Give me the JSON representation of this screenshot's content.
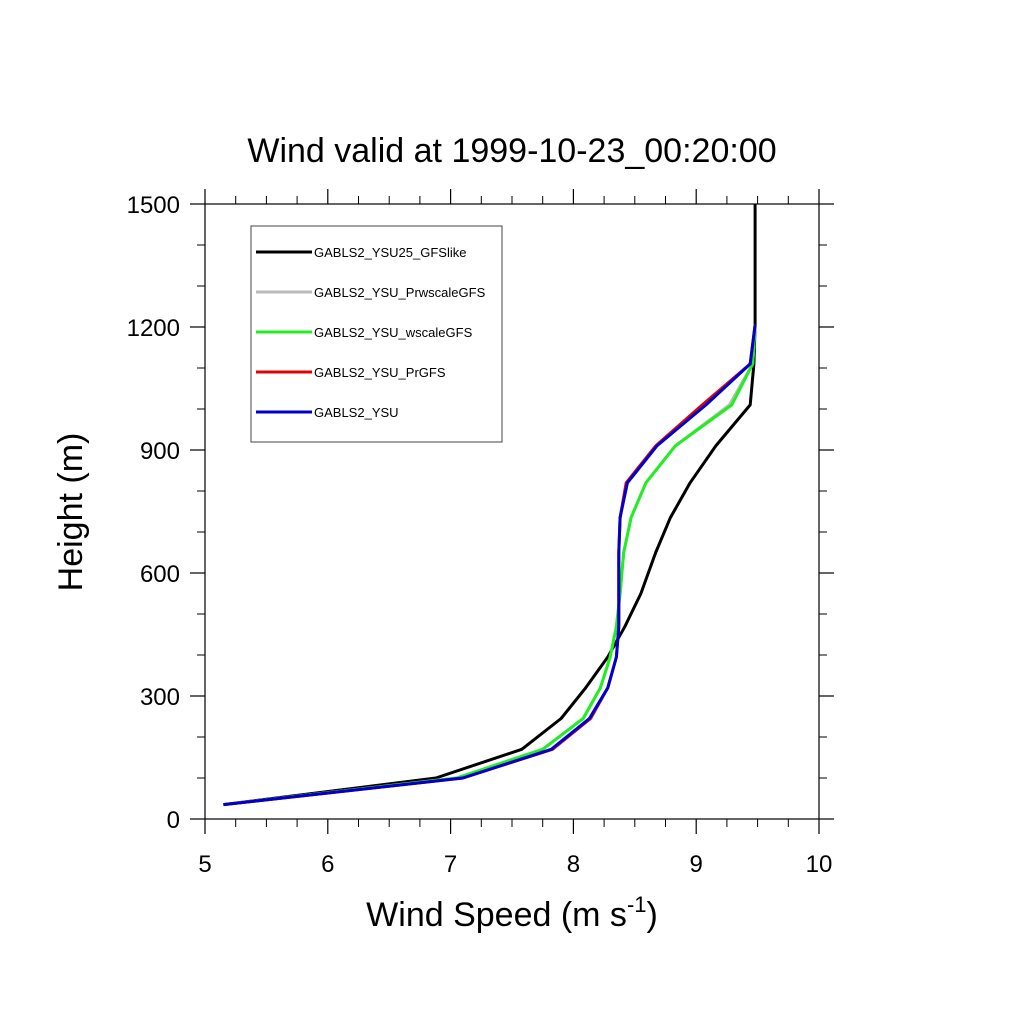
{
  "chart_data": {
    "type": "line",
    "title": "Wind valid at 1999-10-23_00:20:00",
    "xlabel": "Wind Speed (m s",
    "xlabel_sup": "-1",
    "xlabel_end": ")",
    "ylabel": "Height (m)",
    "xlim": [
      5,
      10
    ],
    "ylim": [
      0,
      1500
    ],
    "x_ticks": [
      5,
      6,
      7,
      8,
      9,
      10
    ],
    "y_ticks": [
      0,
      300,
      600,
      900,
      1200,
      1500
    ],
    "x_minor_step": 0.25,
    "y_minor_step": 100,
    "grid": false,
    "legend_position": "top-left",
    "series": [
      {
        "name": "GABLS2_YSU",
        "color": "#0000cc",
        "points": [
          [
            5.15,
            35
          ],
          [
            7.1,
            100
          ],
          [
            7.82,
            170
          ],
          [
            8.13,
            245
          ],
          [
            8.28,
            320
          ],
          [
            8.35,
            395
          ],
          [
            8.37,
            470
          ],
          [
            8.37,
            550
          ],
          [
            8.37,
            650
          ],
          [
            8.38,
            735
          ],
          [
            8.44,
            820
          ],
          [
            8.68,
            910
          ],
          [
            9.08,
            1010
          ],
          [
            9.44,
            1110
          ],
          [
            9.48,
            1205
          ]
        ]
      },
      {
        "name": "GABLS2_YSU_PrGFS",
        "color": "#e00000",
        "points": [
          [
            5.15,
            35
          ],
          [
            7.1,
            100
          ],
          [
            7.83,
            170
          ],
          [
            8.14,
            245
          ],
          [
            8.28,
            320
          ],
          [
            8.35,
            395
          ],
          [
            8.37,
            470
          ],
          [
            8.37,
            550
          ],
          [
            8.37,
            650
          ],
          [
            8.38,
            735
          ],
          [
            8.43,
            820
          ],
          [
            8.67,
            910
          ],
          [
            9.05,
            1010
          ],
          [
            9.44,
            1110
          ],
          [
            9.48,
            1205
          ]
        ]
      },
      {
        "name": "GABLS2_YSU_wscaleGFS",
        "color": "#22ee22",
        "points": [
          [
            5.15,
            35
          ],
          [
            7.05,
            100
          ],
          [
            7.75,
            170
          ],
          [
            8.08,
            245
          ],
          [
            8.22,
            320
          ],
          [
            8.3,
            395
          ],
          [
            8.35,
            470
          ],
          [
            8.38,
            550
          ],
          [
            8.41,
            650
          ],
          [
            8.47,
            735
          ],
          [
            8.59,
            820
          ],
          [
            8.83,
            910
          ],
          [
            9.29,
            1010
          ],
          [
            9.46,
            1110
          ],
          [
            9.48,
            1205
          ]
        ]
      },
      {
        "name": "GABLS2_YSU_PrwscaleGFS",
        "color": "#bbbbbb",
        "points": [
          [
            5.15,
            35
          ],
          [
            7.05,
            100
          ],
          [
            7.75,
            170
          ],
          [
            8.08,
            245
          ],
          [
            8.22,
            320
          ],
          [
            8.3,
            395
          ],
          [
            8.35,
            470
          ],
          [
            8.38,
            550
          ],
          [
            8.41,
            650
          ],
          [
            8.47,
            735
          ],
          [
            8.59,
            820
          ],
          [
            8.83,
            910
          ],
          [
            9.27,
            1010
          ],
          [
            9.46,
            1110
          ],
          [
            9.48,
            1205
          ]
        ]
      },
      {
        "name": "GABLS2_YSU25_GFSlike",
        "color": "#000000",
        "points": [
          [
            5.15,
            35
          ],
          [
            6.88,
            100
          ],
          [
            7.58,
            170
          ],
          [
            7.9,
            245
          ],
          [
            8.1,
            320
          ],
          [
            8.28,
            395
          ],
          [
            8.42,
            470
          ],
          [
            8.55,
            550
          ],
          [
            8.67,
            650
          ],
          [
            8.79,
            735
          ],
          [
            8.95,
            820
          ],
          [
            9.16,
            910
          ],
          [
            9.44,
            1010
          ],
          [
            9.47,
            1110
          ],
          [
            9.48,
            1205
          ],
          [
            9.48,
            1500
          ]
        ]
      }
    ],
    "legend_order": [
      "GABLS2_YSU25_GFSlike",
      "GABLS2_YSU_PrwscaleGFS",
      "GABLS2_YSU_wscaleGFS",
      "GABLS2_YSU_PrGFS",
      "GABLS2_YSU"
    ]
  }
}
